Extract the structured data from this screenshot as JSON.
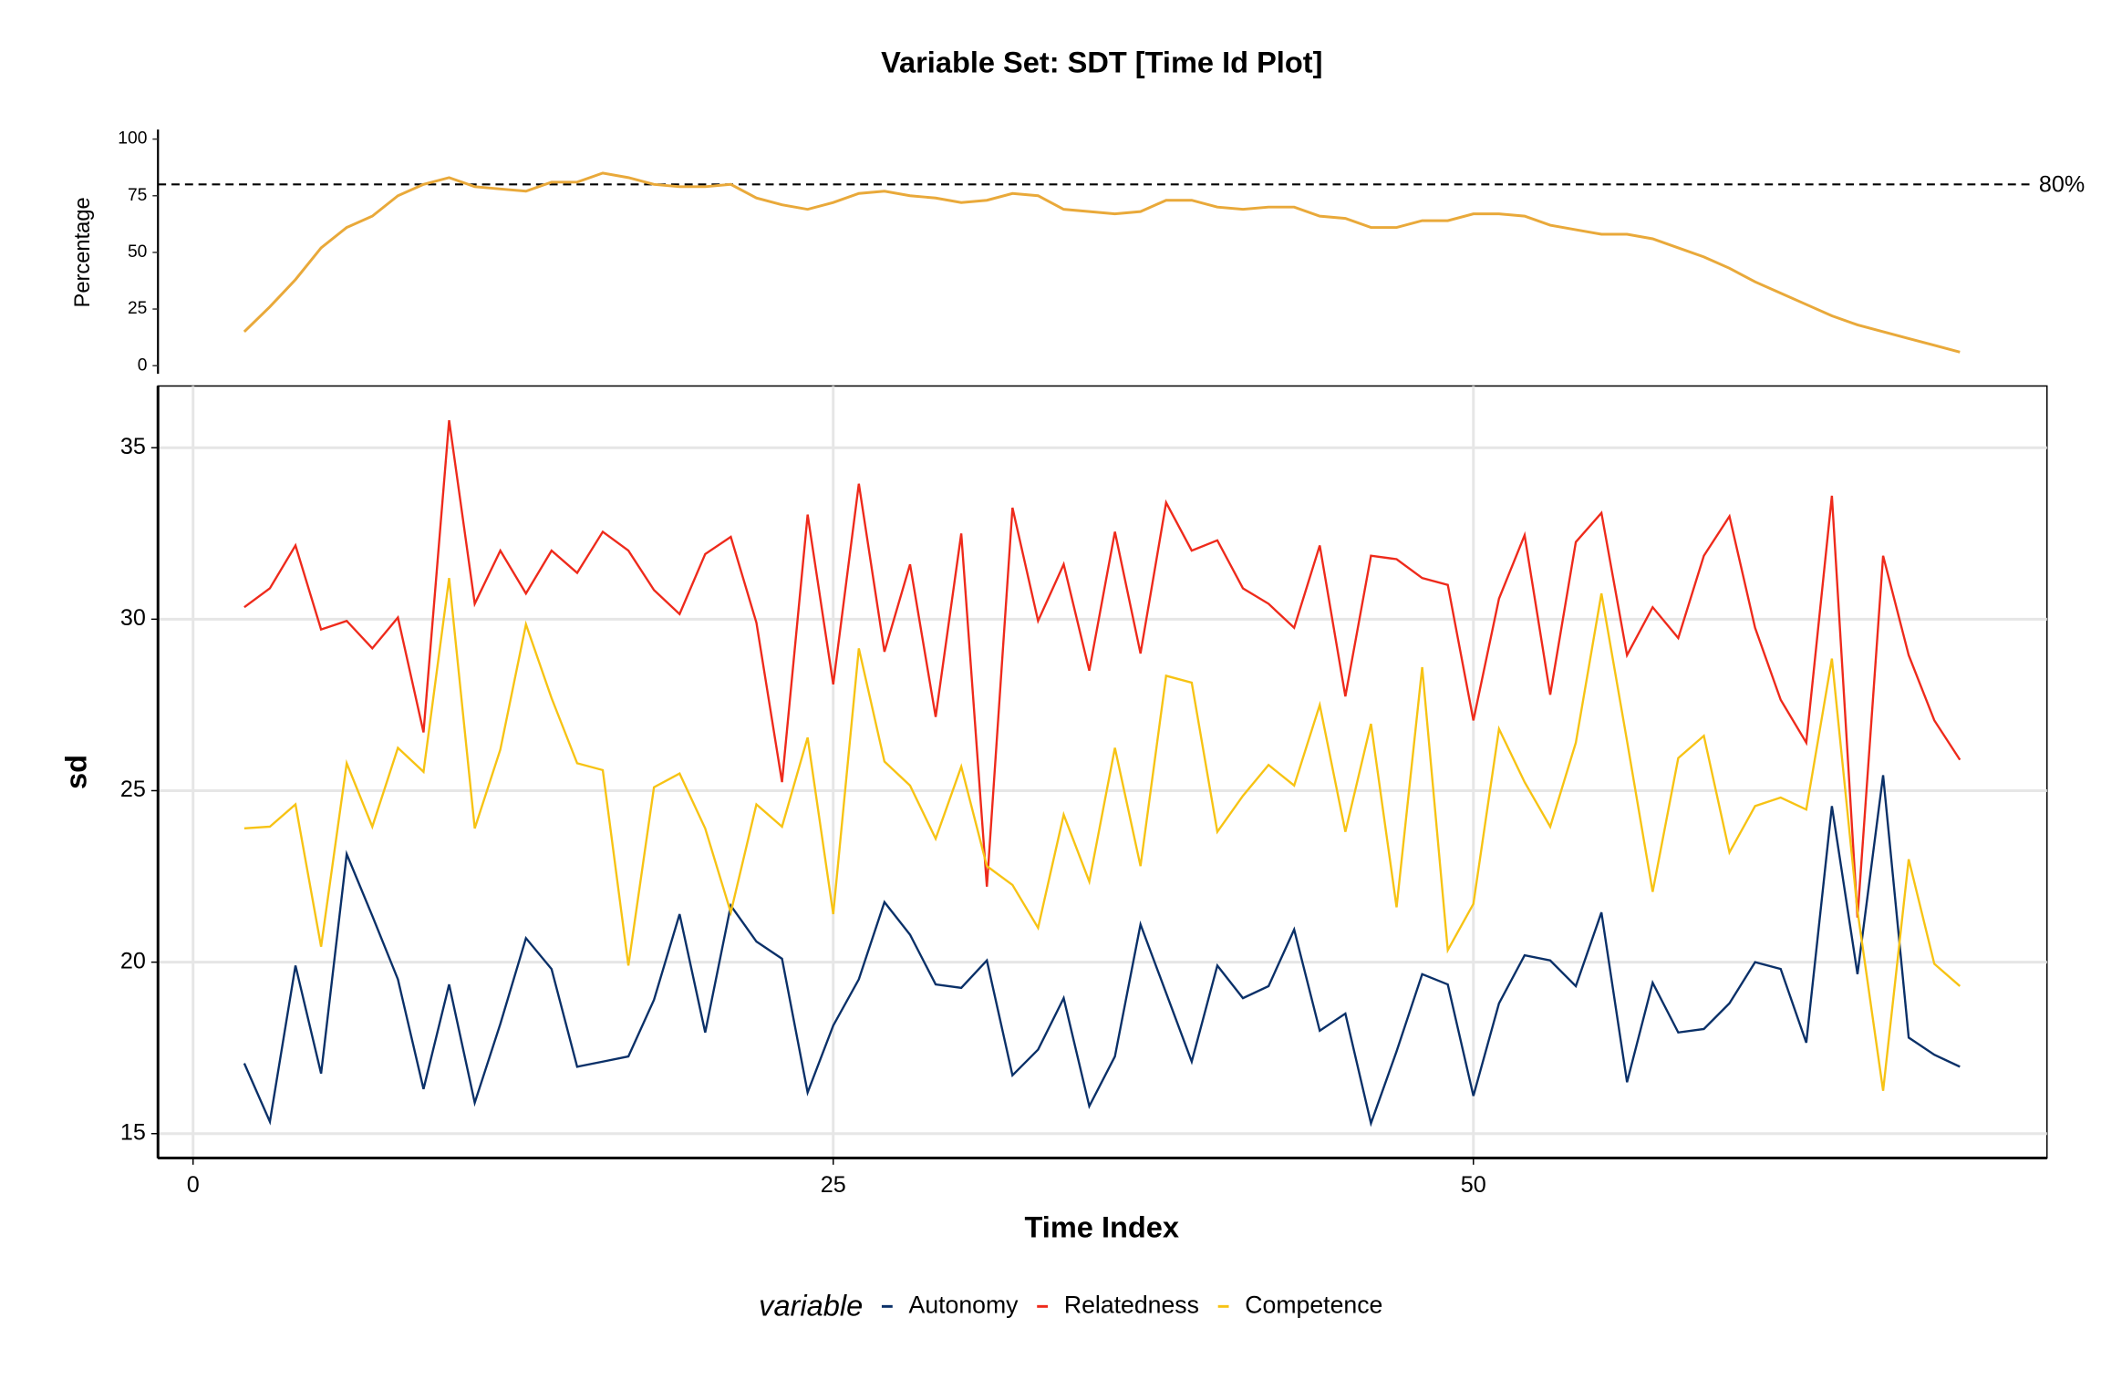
{
  "chart_data": [
    {
      "type": "line",
      "title": "Variable Set: SDT [Time Id Plot]",
      "y_label": "Percentage",
      "x": [
        2,
        3,
        4,
        5,
        6,
        7,
        8,
        9,
        10,
        11,
        12,
        13,
        14,
        15,
        16,
        17,
        18,
        19,
        20,
        21,
        22,
        23,
        24,
        25,
        26,
        27,
        28,
        29,
        30,
        31,
        32,
        33,
        34,
        35,
        36,
        37,
        38,
        39,
        40,
        41,
        42,
        43,
        44,
        45,
        46,
        47,
        48,
        49,
        50,
        51,
        52,
        53,
        54,
        55,
        56,
        57,
        58,
        59,
        60,
        61,
        62,
        63,
        64,
        65,
        66,
        67,
        68,
        69
      ],
      "values": [
        15,
        26,
        38,
        52,
        61,
        66,
        75,
        80,
        83,
        79,
        78,
        77,
        81,
        81,
        85,
        83,
        80,
        79,
        79,
        80,
        74,
        71,
        69,
        72,
        76,
        77,
        75,
        74,
        72,
        73,
        76,
        75,
        69,
        68,
        67,
        68,
        73,
        73,
        70,
        69,
        70,
        70,
        66,
        65,
        61,
        61,
        64,
        64,
        67,
        67,
        66,
        62,
        60,
        58,
        58,
        56,
        52,
        48,
        43,
        37,
        32,
        27,
        22,
        18,
        15,
        12,
        9,
        6
      ],
      "color": "#E9A93A",
      "threshold": {
        "value": 80,
        "label": "80%"
      },
      "xlim": [
        -1.37,
        72.4
      ],
      "ylim": [
        -3.6,
        104.2
      ],
      "yticks": [
        0,
        25,
        50,
        75,
        100
      ]
    },
    {
      "type": "line",
      "x_label": "Time Index",
      "y_label": "sd",
      "legend_title": "variable",
      "legend": "bottom",
      "grid": true,
      "x": [
        2,
        3,
        4,
        5,
        6,
        7,
        8,
        9,
        10,
        11,
        12,
        13,
        14,
        15,
        16,
        17,
        18,
        19,
        20,
        21,
        22,
        23,
        24,
        25,
        26,
        27,
        28,
        29,
        30,
        31,
        32,
        33,
        34,
        35,
        36,
        37,
        38,
        39,
        40,
        41,
        42,
        43,
        44,
        45,
        46,
        47,
        48,
        49,
        50,
        51,
        52,
        53,
        54,
        55,
        56,
        57,
        58,
        59,
        60,
        61,
        62,
        63,
        64,
        65,
        66,
        67,
        68,
        69
      ],
      "series": [
        {
          "name": "Autonomy",
          "color": "#0A3068",
          "values": [
            17.05,
            15.35,
            19.9,
            16.75,
            23.15,
            21.35,
            19.5,
            16.3,
            19.35,
            15.9,
            18.2,
            20.7,
            19.8,
            16.95,
            17.1,
            17.25,
            18.9,
            21.4,
            17.95,
            21.65,
            20.6,
            20.1,
            16.2,
            18.15,
            19.5,
            21.75,
            20.8,
            19.35,
            19.25,
            20.05,
            16.7,
            17.45,
            18.95,
            15.8,
            17.25,
            21.1,
            19.1,
            17.1,
            19.9,
            18.95,
            19.3,
            20.95,
            18.0,
            18.5,
            15.3,
            17.4,
            19.65,
            19.35,
            16.1,
            18.8,
            20.2,
            20.05,
            19.3,
            21.45,
            16.5,
            19.4,
            17.95,
            18.05,
            18.8,
            20.0,
            19.8,
            17.65,
            24.55,
            19.65,
            25.45,
            17.8,
            17.3,
            16.95
          ]
        },
        {
          "name": "Relatedness",
          "color": "#EE2A1B",
          "values": [
            30.35,
            30.9,
            32.15,
            29.7,
            29.95,
            29.15,
            30.05,
            26.7,
            35.8,
            30.45,
            32.0,
            30.75,
            32.0,
            31.35,
            32.55,
            32.0,
            30.85,
            30.15,
            31.9,
            32.4,
            29.9,
            25.25,
            33.05,
            28.1,
            33.95,
            29.05,
            31.6,
            27.15,
            32.5,
            22.2,
            33.25,
            29.95,
            31.6,
            28.5,
            32.55,
            29.0,
            33.4,
            32.0,
            32.3,
            30.9,
            30.45,
            29.75,
            32.15,
            27.75,
            31.85,
            31.75,
            31.2,
            31.0,
            27.05,
            30.6,
            32.45,
            27.8,
            32.25,
            33.1,
            28.95,
            30.35,
            29.45,
            31.85,
            33.0,
            29.75,
            27.65,
            26.4,
            33.6,
            21.3,
            31.85,
            28.95,
            27.05,
            25.9
          ]
        },
        {
          "name": "Competence",
          "color": "#F7C314",
          "values": [
            23.9,
            23.95,
            24.6,
            20.45,
            25.8,
            23.95,
            26.25,
            25.55,
            31.2,
            23.9,
            26.2,
            29.85,
            27.7,
            25.8,
            25.6,
            19.9,
            25.1,
            25.5,
            23.9,
            21.45,
            24.6,
            23.95,
            26.55,
            21.4,
            29.15,
            25.85,
            25.15,
            23.6,
            25.7,
            22.8,
            22.25,
            21.0,
            24.3,
            22.35,
            26.25,
            22.8,
            28.35,
            28.15,
            23.8,
            24.85,
            25.75,
            25.15,
            27.5,
            23.8,
            26.95,
            21.6,
            28.6,
            20.35,
            21.7,
            26.8,
            25.25,
            23.95,
            26.4,
            30.75,
            26.45,
            22.05,
            25.95,
            26.6,
            23.2,
            24.55,
            24.8,
            24.45,
            28.85,
            21.5,
            16.25,
            23.0,
            19.95,
            19.3
          ]
        }
      ],
      "xlim": [
        -1.37,
        72.4
      ],
      "ylim": [
        14.29,
        36.8
      ],
      "xticks": [
        0,
        25,
        50
      ],
      "yticks": [
        15,
        20,
        25,
        30,
        35
      ]
    }
  ]
}
